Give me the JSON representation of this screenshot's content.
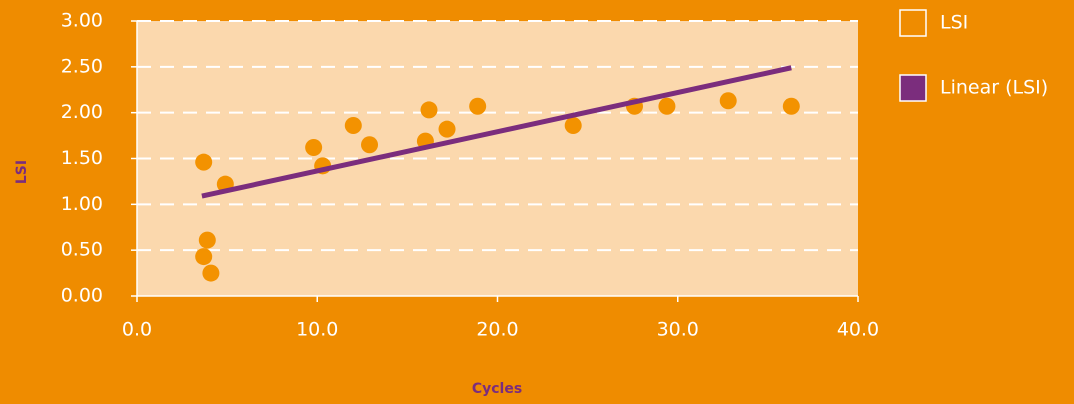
{
  "chart_data": {
    "type": "scatter",
    "x_label": "Cycles",
    "y_label": "LSI",
    "xlim": [
      0,
      40
    ],
    "ylim": [
      0,
      3
    ],
    "xticks": [
      {
        "value": 0,
        "label": "0.0"
      },
      {
        "value": 10,
        "label": "10.0"
      },
      {
        "value": 20,
        "label": "20.0"
      },
      {
        "value": 30,
        "label": "30.0"
      },
      {
        "value": 40,
        "label": "40.0"
      }
    ],
    "yticks": [
      {
        "value": 0,
        "label": "0.00"
      },
      {
        "value": 0.5,
        "label": "0.50"
      },
      {
        "value": 1,
        "label": "1.00"
      },
      {
        "value": 1.5,
        "label": "1.50"
      },
      {
        "value": 2,
        "label": "2.00"
      },
      {
        "value": 2.5,
        "label": "2.50"
      },
      {
        "value": 3,
        "label": "3.00"
      }
    ],
    "grid": true,
    "legend": "right",
    "series": [
      {
        "name": "LSI",
        "color": "#f39200",
        "mode": "markers",
        "x": [
          3.7,
          3.7,
          3.9,
          4.1,
          4.9,
          9.8,
          10.3,
          12.0,
          12.9,
          16.0,
          16.2,
          17.2,
          18.9,
          24.2,
          27.6,
          29.4,
          32.8,
          36.3
        ],
        "values": [
          1.46,
          0.43,
          0.61,
          0.25,
          1.22,
          1.62,
          1.42,
          1.86,
          1.65,
          1.69,
          2.03,
          1.82,
          2.07,
          1.86,
          2.07,
          2.07,
          2.13,
          2.07
        ]
      },
      {
        "name": "Linear (LSI)",
        "color": "#7b2d7d",
        "mode": "line",
        "x": [
          3.6,
          36.3
        ],
        "values": [
          1.09,
          2.49
        ]
      }
    ]
  }
}
